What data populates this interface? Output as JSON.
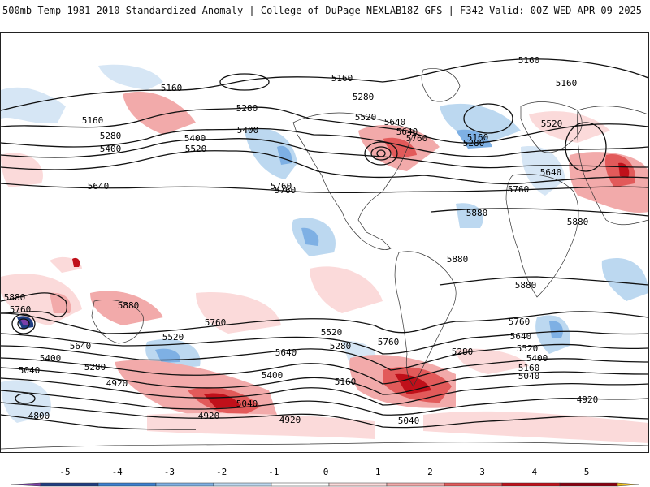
{
  "header": {
    "title": "500mb Temp 1981-2010 Standardized Anomaly | College of DuPage NEXLAB",
    "run_info": "18Z GFS | F342 Valid: 00Z WED APR 09 2025"
  },
  "map": {
    "height_contour_labels": [
      {
        "text": "5160"
      },
      {
        "text": "5160"
      },
      {
        "text": "5160"
      },
      {
        "text": "5160"
      },
      {
        "text": "5160"
      },
      {
        "text": "5160"
      },
      {
        "text": "5160"
      },
      {
        "text": "5160"
      },
      {
        "text": "5280"
      },
      {
        "text": "5280"
      },
      {
        "text": "5280"
      },
      {
        "text": "5280"
      },
      {
        "text": "5280"
      },
      {
        "text": "5280"
      },
      {
        "text": "5280"
      },
      {
        "text": "5400"
      },
      {
        "text": "5400"
      },
      {
        "text": "5400"
      },
      {
        "text": "5400"
      },
      {
        "text": "5400"
      },
      {
        "text": "5400"
      },
      {
        "text": "5520"
      },
      {
        "text": "5520"
      },
      {
        "text": "5520"
      },
      {
        "text": "5520"
      },
      {
        "text": "5520"
      },
      {
        "text": "5520"
      },
      {
        "text": "5640"
      },
      {
        "text": "5640"
      },
      {
        "text": "5640"
      },
      {
        "text": "5640"
      },
      {
        "text": "5640"
      },
      {
        "text": "5640"
      },
      {
        "text": "5640"
      },
      {
        "text": "5760"
      },
      {
        "text": "5760"
      },
      {
        "text": "5760"
      },
      {
        "text": "5760"
      },
      {
        "text": "5760"
      },
      {
        "text": "5760"
      },
      {
        "text": "5760"
      },
      {
        "text": "5760"
      },
      {
        "text": "5880"
      },
      {
        "text": "5880"
      },
      {
        "text": "5880"
      },
      {
        "text": "5880"
      },
      {
        "text": "5880"
      },
      {
        "text": "5880"
      },
      {
        "text": "5040"
      },
      {
        "text": "5040"
      },
      {
        "text": "5040"
      },
      {
        "text": "5040"
      },
      {
        "text": "4920"
      },
      {
        "text": "4920"
      },
      {
        "text": "4920"
      },
      {
        "text": "4920"
      },
      {
        "text": "4800"
      }
    ]
  },
  "colorbar": {
    "tick_labels": [
      "-5",
      "-4",
      "-3",
      "-2",
      "-1",
      "0",
      "1",
      "2",
      "3",
      "4",
      "5"
    ],
    "colors": [
      "#7b3fa8",
      "#1f3d82",
      "#3b7fd0",
      "#7eb0e4",
      "#bcd8f0",
      "#ffffff",
      "#fbdada",
      "#f2aaaa",
      "#e25a5a",
      "#c0101a",
      "#8a0010",
      "#f0c020"
    ]
  }
}
